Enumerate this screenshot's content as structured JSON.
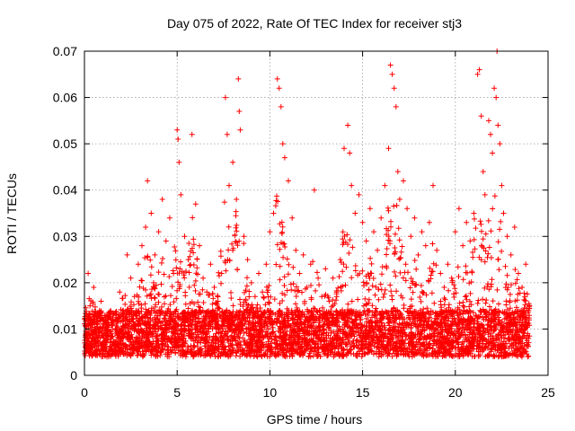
{
  "chart_data": {
    "type": "scatter",
    "title": "Day 075 of 2022, Rate Of TEC Index for receiver stj3",
    "xlabel": "GPS time / hours",
    "ylabel": "ROTI / TECUs",
    "xlim": [
      0,
      25
    ],
    "ylim": [
      0,
      0.07
    ],
    "xticks": [
      0,
      5,
      10,
      15,
      20,
      25
    ],
    "xtick_labels": [
      "0",
      "5",
      "10",
      "15",
      "20",
      "25"
    ],
    "yticks": [
      0,
      0.01,
      0.02,
      0.03,
      0.04,
      0.05,
      0.06,
      0.07
    ],
    "ytick_labels": [
      "0",
      "0.01",
      "0.02",
      "0.03",
      "0.04",
      "0.05",
      "0.06",
      "0.07"
    ],
    "grid": true,
    "marker": "+",
    "color": "#ff0000",
    "series": [
      {
        "name": "ROTI",
        "points": [
          [
            0.1,
            0.012
          ],
          [
            0.2,
            0.022
          ],
          [
            0.3,
            0.015
          ],
          [
            0.4,
            0.008
          ],
          [
            0.5,
            0.019
          ],
          [
            0.7,
            0.011
          ],
          [
            0.9,
            0.016
          ],
          [
            1.1,
            0.009
          ],
          [
            1.3,
            0.013
          ],
          [
            1.5,
            0.007
          ],
          [
            1.7,
            0.012
          ],
          [
            1.9,
            0.018
          ],
          [
            2.1,
            0.014
          ],
          [
            2.3,
            0.026
          ],
          [
            2.5,
            0.021
          ],
          [
            2.7,
            0.017
          ],
          [
            2.9,
            0.024
          ],
          [
            3.1,
            0.028
          ],
          [
            3.3,
            0.032
          ],
          [
            3.4,
            0.042
          ],
          [
            3.6,
            0.035
          ],
          [
            3.8,
            0.026
          ],
          [
            4.0,
            0.031
          ],
          [
            4.2,
            0.038
          ],
          [
            4.4,
            0.029
          ],
          [
            4.6,
            0.034
          ],
          [
            4.8,
            0.022
          ],
          [
            5.0,
            0.053
          ],
          [
            5.05,
            0.051
          ],
          [
            5.1,
            0.046
          ],
          [
            5.2,
            0.039
          ],
          [
            5.4,
            0.03
          ],
          [
            5.6,
            0.025
          ],
          [
            5.8,
            0.052
          ],
          [
            6.0,
            0.037
          ],
          [
            6.2,
            0.028
          ],
          [
            6.4,
            0.021
          ],
          [
            6.6,
            0.018
          ],
          [
            6.8,
            0.024
          ],
          [
            7.0,
            0.019
          ],
          [
            7.2,
            0.016
          ],
          [
            7.4,
            0.022
          ],
          [
            7.6,
            0.06
          ],
          [
            7.7,
            0.052
          ],
          [
            7.8,
            0.041
          ],
          [
            8.0,
            0.046
          ],
          [
            8.2,
            0.038
          ],
          [
            8.3,
            0.064
          ],
          [
            8.35,
            0.057
          ],
          [
            8.4,
            0.053
          ],
          [
            8.6,
            0.03
          ],
          [
            8.8,
            0.025
          ],
          [
            9.0,
            0.02
          ],
          [
            9.2,
            0.017
          ],
          [
            9.4,
            0.022
          ],
          [
            9.6,
            0.018
          ],
          [
            9.8,
            0.024
          ],
          [
            10.0,
            0.031
          ],
          [
            10.2,
            0.035
          ],
          [
            10.4,
            0.064
          ],
          [
            10.5,
            0.062
          ],
          [
            10.6,
            0.058
          ],
          [
            10.7,
            0.05
          ],
          [
            10.8,
            0.047
          ],
          [
            11.0,
            0.042
          ],
          [
            11.2,
            0.034
          ],
          [
            11.4,
            0.027
          ],
          [
            11.6,
            0.022
          ],
          [
            11.8,
            0.026
          ],
          [
            12.0,
            0.019
          ],
          [
            12.2,
            0.024
          ],
          [
            12.4,
            0.04
          ],
          [
            12.6,
            0.021
          ],
          [
            12.8,
            0.017
          ],
          [
            13.0,
            0.023
          ],
          [
            13.2,
            0.016
          ],
          [
            13.4,
            0.021
          ],
          [
            13.6,
            0.018
          ],
          [
            13.8,
            0.025
          ],
          [
            14.0,
            0.049
          ],
          [
            14.2,
            0.054
          ],
          [
            14.3,
            0.048
          ],
          [
            14.4,
            0.041
          ],
          [
            14.6,
            0.035
          ],
          [
            14.8,
            0.039
          ],
          [
            15.0,
            0.033
          ],
          [
            15.2,
            0.029
          ],
          [
            15.4,
            0.036
          ],
          [
            15.6,
            0.031
          ],
          [
            15.8,
            0.027
          ],
          [
            16.0,
            0.034
          ],
          [
            16.2,
            0.041
          ],
          [
            16.4,
            0.049
          ],
          [
            16.5,
            0.067
          ],
          [
            16.6,
            0.065
          ],
          [
            16.7,
            0.062
          ],
          [
            16.8,
            0.058
          ],
          [
            16.9,
            0.044
          ],
          [
            17.0,
            0.038
          ],
          [
            17.2,
            0.042
          ],
          [
            17.4,
            0.036
          ],
          [
            17.6,
            0.03
          ],
          [
            17.8,
            0.034
          ],
          [
            18.0,
            0.026
          ],
          [
            18.2,
            0.031
          ],
          [
            18.4,
            0.028
          ],
          [
            18.6,
            0.033
          ],
          [
            18.8,
            0.041
          ],
          [
            19.0,
            0.027
          ],
          [
            19.2,
            0.022
          ],
          [
            19.4,
            0.019
          ],
          [
            19.6,
            0.024
          ],
          [
            19.8,
            0.021
          ],
          [
            20.0,
            0.031
          ],
          [
            20.2,
            0.036
          ],
          [
            20.4,
            0.028
          ],
          [
            20.6,
            0.033
          ],
          [
            20.8,
            0.029
          ],
          [
            21.0,
            0.035
          ],
          [
            21.2,
            0.065
          ],
          [
            21.3,
            0.066
          ],
          [
            21.4,
            0.056
          ],
          [
            21.5,
            0.044
          ],
          [
            21.6,
            0.039
          ],
          [
            21.8,
            0.055
          ],
          [
            21.9,
            0.052
          ],
          [
            22.0,
            0.048
          ],
          [
            22.1,
            0.062
          ],
          [
            22.2,
            0.06
          ],
          [
            22.25,
            0.07
          ],
          [
            22.3,
            0.054
          ],
          [
            22.4,
            0.05
          ],
          [
            22.5,
            0.041
          ],
          [
            22.6,
            0.035
          ],
          [
            22.8,
            0.03
          ],
          [
            23.0,
            0.026
          ],
          [
            23.2,
            0.032
          ],
          [
            23.4,
            0.022
          ],
          [
            23.6,
            0.019
          ],
          [
            23.8,
            0.024
          ],
          [
            24.0,
            0.015
          ]
        ]
      }
    ],
    "noise_band": {
      "baseline": 0.008,
      "spread": 0.006,
      "count": 5000
    }
  }
}
